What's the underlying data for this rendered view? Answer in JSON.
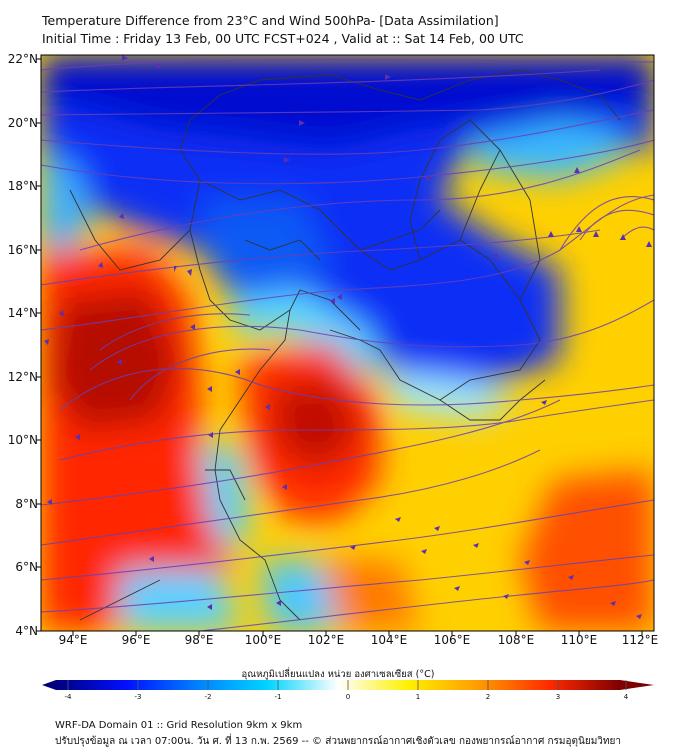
{
  "header": {
    "title_line1": "Temperature Difference from 23°C and Wind 500hPa- [Data Assimilation]",
    "title_line2": "Initial Time : Friday 13 Feb, 00 UTC FCST+024 , Valid at ::  Sat 14 Feb, 00 UTC"
  },
  "map": {
    "lat_labels": [
      "22°N",
      "20°N",
      "18°N",
      "16°N",
      "14°N",
      "12°N",
      "10°N",
      "8°N",
      "6°N",
      "4°N"
    ],
    "lon_labels": [
      "94°E",
      "96°E",
      "98°E",
      "100°E",
      "102°E",
      "104°E",
      "106°E",
      "108°E",
      "110°E",
      "112°E"
    ],
    "streamline_color": "#6a3fb5",
    "border_color": "#333333"
  },
  "colorbar": {
    "title": "อุณหภูมิเปลี่ยนแปลง หน่วย องศาเซลเซียส (°C)",
    "ticks": [
      "-4",
      "-3",
      "-2",
      "-1",
      "0",
      "1",
      "2",
      "3",
      "4"
    ],
    "min": -4,
    "max": 4,
    "colors": [
      "#00007f",
      "#0010ff",
      "#0080ff",
      "#00d4ff",
      "#ffffff",
      "#fff000",
      "#ff9a00",
      "#ff2a00",
      "#7f0000"
    ]
  },
  "footer": {
    "line1": "WRF-DA Domain 01 :: Grid Resolution 9km x 9km",
    "line2": "ปรับปรุงข้อมูล ณ เวลา 07:00น. วัน ศ. ที่ 13 ก.พ. 2569 -- © ส่วนพยากรณ์อากาศเชิงตัวเลข กองพยากรณ์อากาศ กรมอุตุนิยมวิทยา"
  }
}
